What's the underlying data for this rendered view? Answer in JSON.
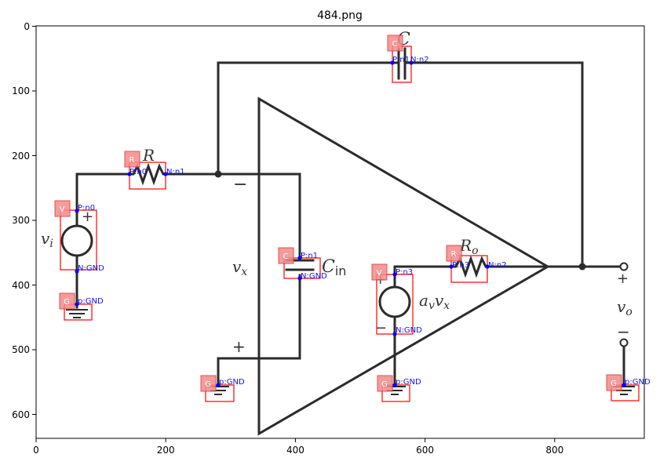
{
  "title": "484.png",
  "axes": {
    "x_ticks": [
      "0",
      "200",
      "400",
      "600",
      "800"
    ],
    "y_ticks": [
      "0",
      "100",
      "200",
      "300",
      "400",
      "500",
      "600"
    ]
  },
  "circuit_labels": {
    "C": "C",
    "R": "R",
    "vi": "v",
    "vi_sub": "i",
    "vx": "v",
    "vx_sub": "x",
    "Cin": "C",
    "Cin_sub": "in",
    "Ro": "R",
    "Ro_sub": "o",
    "avvx": "a",
    "avvx_sub1": "v",
    "avvx_v": "v",
    "avvx_sub2": "x",
    "vo": "v",
    "vo_sub": "o",
    "minus": "−",
    "plus": "+"
  },
  "components": [
    {
      "tag": "C",
      "pin1": "P:n1",
      "pin2": "N:n2"
    },
    {
      "tag": "R",
      "pin1": "P:n0",
      "pin2": "N:n1"
    },
    {
      "tag": "V",
      "pin1": "P:n0",
      "pin2": "N:GND"
    },
    {
      "tag": "G",
      "pin1": "p:GND"
    },
    {
      "tag": "C",
      "pin1": "P:n1",
      "pin2": "N:GND"
    },
    {
      "tag": "G",
      "pin1": "p:GND"
    },
    {
      "tag": "R",
      "pin1": "P:n3",
      "pin2": "N:n2"
    },
    {
      "tag": "V",
      "pin1": "P:n3",
      "pin2": "N:GND"
    },
    {
      "tag": "G",
      "pin1": "p:GND"
    },
    {
      "tag": "G",
      "pin1": "p:GND"
    }
  ]
}
